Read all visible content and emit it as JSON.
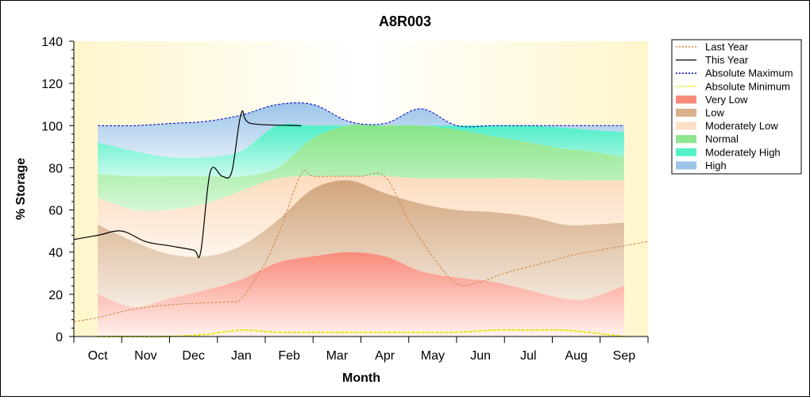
{
  "chart_data": {
    "type": "area",
    "title": "A8R003",
    "xlabel": "Month",
    "ylabel": "% Storage",
    "ylim": [
      0,
      140
    ],
    "yticks": [
      "0",
      "20",
      "40",
      "60",
      "80",
      "100",
      "120",
      "140"
    ],
    "categories": [
      "Oct",
      "Nov",
      "Dec",
      "Jan",
      "Feb",
      "Mar",
      "Apr",
      "May",
      "Jun",
      "Jul",
      "Aug",
      "Sep"
    ],
    "xlim": [
      -0.5,
      11.5
    ],
    "bands_x": [
      0,
      0.75,
      1.5,
      2.25,
      3,
      3.75,
      4.5,
      5.25,
      6,
      6.75,
      7.5,
      8.25,
      9,
      9.75,
      10.25,
      11
    ],
    "absolute_maximum": [
      100,
      100,
      101,
      102,
      105,
      110,
      110,
      102,
      101,
      108,
      100,
      100,
      100,
      100,
      100,
      100
    ],
    "absolute_minimum": [
      0,
      0,
      0,
      1,
      3,
      2,
      2,
      2,
      2,
      2,
      2,
      3,
      3,
      3,
      2,
      0
    ],
    "band_thresholds": {
      "very_low": [
        20,
        14,
        18,
        22,
        27,
        35,
        38,
        40,
        38,
        31,
        28,
        26,
        22,
        18,
        18,
        24
      ],
      "low": [
        53,
        45,
        39,
        38,
        43,
        55,
        70,
        74,
        68,
        63,
        60,
        59,
        57,
        53,
        53,
        54
      ],
      "moderately_low": [
        66,
        60,
        60,
        63,
        69,
        75,
        76,
        76,
        76,
        75,
        75,
        75,
        75,
        74,
        74,
        74
      ],
      "normal": [
        77,
        76,
        76,
        76,
        76,
        80,
        94,
        100,
        100,
        100,
        98,
        95,
        92,
        89,
        88,
        85
      ],
      "moderately_high": [
        92,
        88,
        85,
        85,
        88,
        100,
        100,
        100,
        100,
        100,
        100,
        100,
        100,
        99,
        98,
        97
      ]
    },
    "series": [
      {
        "name": "Last Year",
        "x": [
          -0.5,
          0,
          0.75,
          1.5,
          2.25,
          2.75,
          3,
          3.5,
          3.8,
          4.25,
          4.5,
          5,
          5.5,
          6,
          6.5,
          7,
          7.5,
          8,
          8.5,
          9,
          9.5,
          10,
          10.5,
          11,
          11.5
        ],
        "values": [
          7,
          9,
          13,
          15,
          16,
          16.5,
          18,
          35,
          50,
          77,
          76,
          76,
          76,
          76,
          55,
          38,
          25,
          26,
          30,
          33,
          36,
          39,
          41,
          43,
          45
        ]
      },
      {
        "name": "This Year",
        "x": [
          -0.5,
          0,
          0.5,
          1,
          1.5,
          2,
          2.15,
          2.35,
          2.6,
          2.8,
          3,
          3.2,
          4.25
        ],
        "values": [
          46,
          48,
          50,
          45,
          43,
          41,
          40,
          78,
          76,
          78,
          106,
          101,
          100
        ]
      }
    ],
    "legend": {
      "position": "right",
      "entries": [
        {
          "label": "Last Year",
          "color": "#cd853f",
          "style": "dashed-line"
        },
        {
          "label": "This Year",
          "color": "#000000",
          "style": "solid-line"
        },
        {
          "label": "Absolute Maximum",
          "color": "#0000cc",
          "style": "dotted-line"
        },
        {
          "label": "Absolute Minimum",
          "color": "#e8e800",
          "style": "dotted-line"
        },
        {
          "label": "Very Low",
          "color": "#f98a7a",
          "style": "fill"
        },
        {
          "label": "Low",
          "color": "#d7b18c",
          "style": "fill"
        },
        {
          "label": "Moderately Low",
          "color": "#fde0c6",
          "style": "fill"
        },
        {
          "label": "Normal",
          "color": "#8ee68e",
          "style": "fill"
        },
        {
          "label": "Moderately High",
          "color": "#55f0c8",
          "style": "fill"
        },
        {
          "label": "High",
          "color": "#9cc4e8",
          "style": "fill"
        }
      ]
    },
    "colors": {
      "plot_background": "#fffbe6",
      "very_low_top": "#f98a7a",
      "low": "#d7b18c",
      "moderately_low": "#fde0c6",
      "normal": "#8ee68e",
      "moderately_high": "#55f0c8",
      "high": "#9cc4e8",
      "abs_max": "#0000cc",
      "abs_min": "#e8e800",
      "last_year": "#cd853f",
      "this_year": "#000000"
    },
    "grid": false
  }
}
